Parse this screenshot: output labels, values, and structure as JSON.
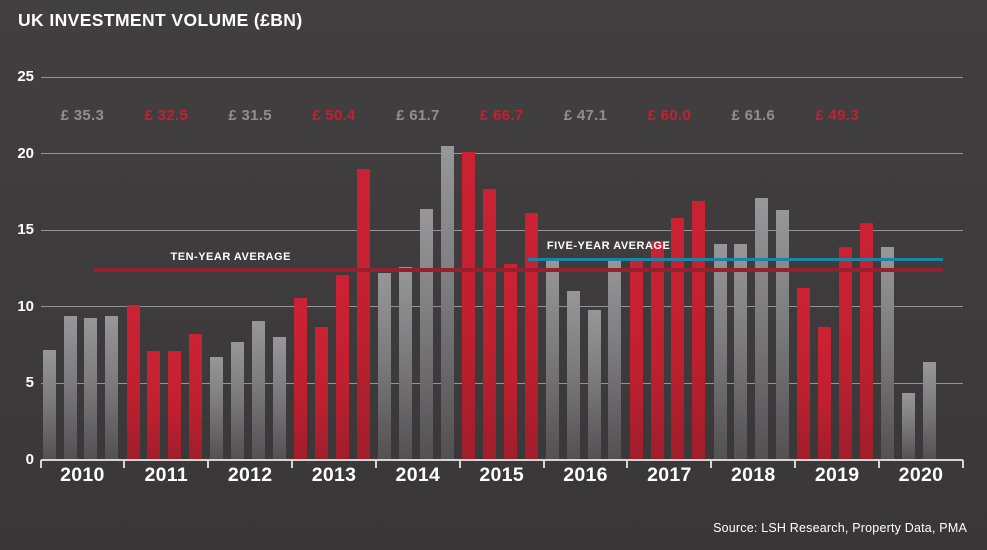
{
  "title": "UK INVESTMENT VOLUME (£BN)",
  "source": "Source: LSH Research, Property Data, PMA",
  "colors": {
    "background": "#3e3b3c",
    "bar_gray": "#8c8c8f",
    "bar_red": "#c5202f",
    "total_label_gray": "#8f8f92",
    "total_label_red": "#c32031",
    "ten_year_line": "#96202d",
    "five_year_line": "#1e84a6",
    "gridline": "#a5a2a3",
    "axis": "#d6d4d4",
    "text": "#ffffff"
  },
  "chart_data": {
    "type": "bar",
    "title": "UK INVESTMENT VOLUME (£BN)",
    "unit": "£bn",
    "ylim": [
      0,
      25
    ],
    "yticks": [
      0,
      5,
      10,
      15,
      20,
      25
    ],
    "grid": true,
    "x_group_labels_are_years": true,
    "years": [
      {
        "year": "2010",
        "total_label": "£ 35.3",
        "total": 35.3,
        "color": "gray",
        "quarters": [
          7.2,
          9.4,
          9.3,
          9.4
        ]
      },
      {
        "year": "2011",
        "total_label": "£ 32.5",
        "total": 32.5,
        "color": "red",
        "quarters": [
          10.1,
          7.1,
          7.1,
          8.2
        ]
      },
      {
        "year": "2012",
        "total_label": "£ 31.5",
        "total": 31.5,
        "color": "gray",
        "quarters": [
          6.7,
          7.7,
          9.1,
          8.0
        ]
      },
      {
        "year": "2013",
        "total_label": "£ 50.4",
        "total": 50.4,
        "color": "red",
        "quarters": [
          10.6,
          8.7,
          12.1,
          19.0
        ]
      },
      {
        "year": "2014",
        "total_label": "£ 61.7",
        "total": 61.7,
        "color": "gray",
        "quarters": [
          12.2,
          12.6,
          16.4,
          20.5
        ]
      },
      {
        "year": "2015",
        "total_label": "£ 66.7",
        "total": 66.7,
        "color": "red",
        "quarters": [
          20.1,
          17.7,
          12.8,
          16.1
        ]
      },
      {
        "year": "2016",
        "total_label": "£ 47.1",
        "total": 47.1,
        "color": "gray",
        "quarters": [
          13.1,
          11.0,
          9.8,
          13.2
        ]
      },
      {
        "year": "2017",
        "total_label": "£ 60.0",
        "total": 60.0,
        "color": "red",
        "quarters": [
          13.0,
          14.3,
          15.8,
          16.9
        ]
      },
      {
        "year": "2018",
        "total_label": "£ 61.6",
        "total": 61.6,
        "color": "gray",
        "quarters": [
          14.1,
          14.1,
          17.1,
          16.3
        ]
      },
      {
        "year": "2019",
        "total_label": "£ 49.3",
        "total": 49.3,
        "color": "red",
        "quarters": [
          11.2,
          8.7,
          13.9,
          15.5
        ]
      },
      {
        "year": "2020",
        "total_label": "",
        "total": null,
        "color": "gray",
        "quarters": [
          13.9,
          4.4,
          6.4
        ]
      }
    ],
    "reference_lines": [
      {
        "id": "ten-year-average",
        "label": "TEN-YEAR AVERAGE",
        "value": 12.4,
        "color": "#96202d",
        "thickness": 4,
        "x_start_frac": 0.058,
        "x_end_frac": 0.978,
        "label_left_frac": 0.141
      },
      {
        "id": "five-year-average",
        "label": "FIVE-YEAR AVERAGE",
        "value": 13.1,
        "color": "#1e84a6",
        "thickness": 3,
        "x_start_frac": 0.528,
        "x_end_frac": 0.978,
        "label_left_frac": 0.549
      }
    ],
    "legend": null
  }
}
